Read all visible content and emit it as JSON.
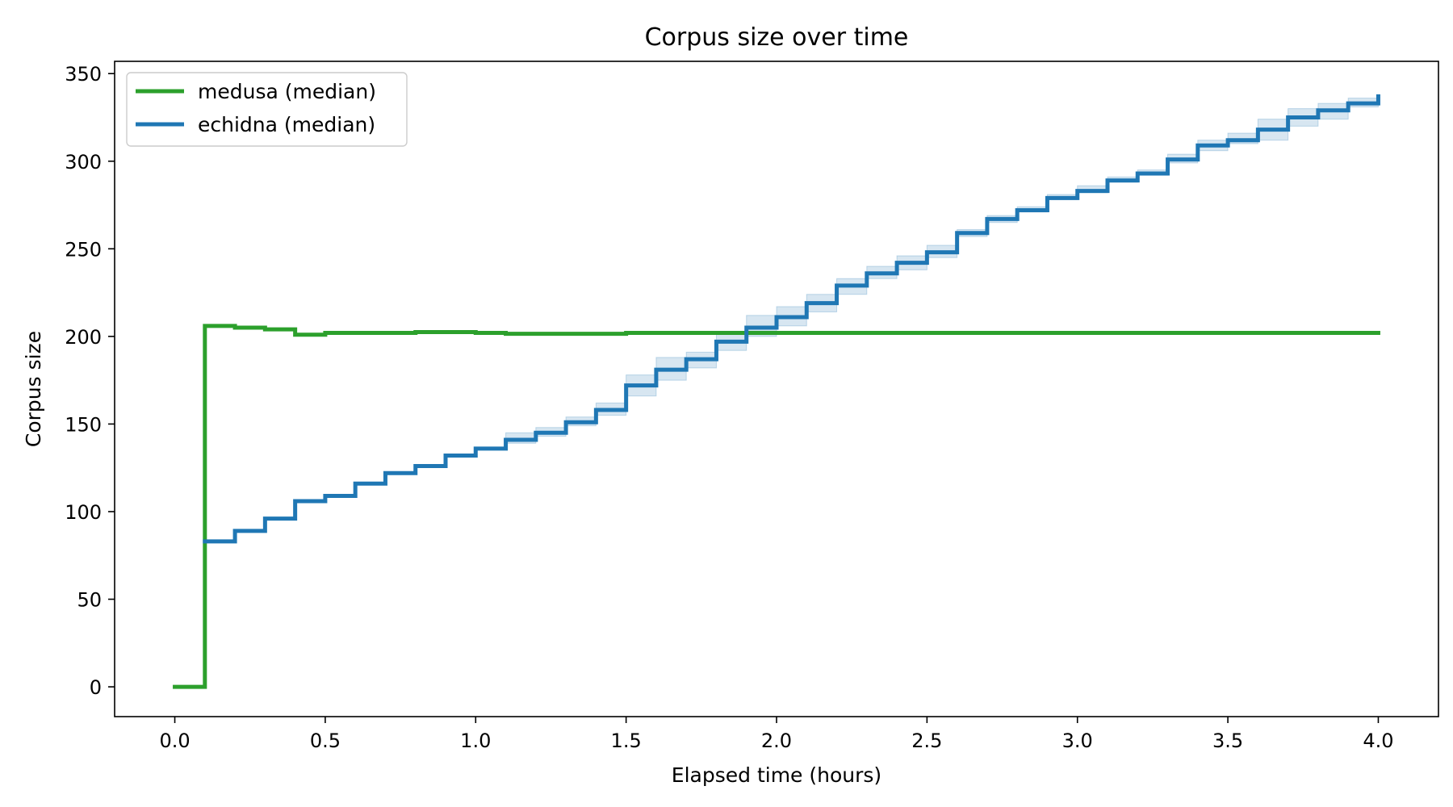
{
  "chart_data": {
    "type": "line",
    "title": "Corpus size over time",
    "xlabel": "Elapsed time (hours)",
    "ylabel": "Corpus size",
    "xlim": [
      -0.2,
      4.2
    ],
    "ylim": [
      -17,
      357
    ],
    "xticks": [
      "0.0",
      "0.5",
      "1.0",
      "1.5",
      "2.0",
      "2.5",
      "3.0",
      "3.5",
      "4.0"
    ],
    "yticks": [
      "0",
      "50",
      "100",
      "150",
      "200",
      "250",
      "300",
      "350"
    ],
    "grid": false,
    "legend_position": "top-left",
    "step": "post",
    "series": [
      {
        "name": "medusa (median)",
        "color": "#2ca02c",
        "x": [
          0.0,
          0.1,
          0.2,
          0.3,
          0.4,
          0.5,
          0.6,
          0.7,
          0.8,
          0.9,
          1.0,
          1.1,
          1.2,
          1.3,
          1.4,
          1.5,
          1.6,
          1.7,
          1.8,
          1.9,
          2.0,
          2.1,
          2.2,
          2.3,
          2.4,
          2.5,
          2.6,
          2.7,
          2.8,
          2.9,
          3.0,
          3.1,
          3.2,
          3.3,
          3.4,
          3.5,
          3.6,
          3.7,
          3.8,
          3.9,
          4.0
        ],
        "y": [
          0,
          206,
          205,
          204,
          201,
          202,
          202,
          202,
          202.5,
          202.5,
          202,
          201.5,
          201.5,
          201.5,
          201.5,
          202,
          202,
          202,
          202,
          202,
          202,
          202,
          202,
          202,
          202,
          202,
          202,
          202,
          202,
          202,
          202,
          202,
          202,
          202,
          202,
          202,
          202,
          202,
          202,
          202,
          202
        ]
      },
      {
        "name": "echidna (median)",
        "color": "#1f77b4",
        "x": [
          0.1,
          0.2,
          0.3,
          0.4,
          0.5,
          0.6,
          0.7,
          0.8,
          0.9,
          1.0,
          1.1,
          1.2,
          1.3,
          1.4,
          1.5,
          1.6,
          1.7,
          1.8,
          1.9,
          2.0,
          2.1,
          2.2,
          2.3,
          2.4,
          2.5,
          2.6,
          2.7,
          2.8,
          2.9,
          3.0,
          3.1,
          3.2,
          3.3,
          3.4,
          3.5,
          3.6,
          3.7,
          3.8,
          3.9,
          4.0
        ],
        "y": [
          83,
          89,
          96,
          106,
          109,
          116,
          122,
          126,
          132,
          136,
          141,
          145,
          151,
          158,
          172,
          181,
          187,
          197,
          205,
          211,
          219,
          229,
          236,
          242,
          248,
          259,
          267,
          272,
          279,
          283,
          289,
          293,
          301,
          309,
          312,
          318,
          325,
          329,
          333,
          337
        ],
        "band_low": [
          83,
          89,
          96,
          106,
          109,
          116,
          122,
          126,
          132,
          136,
          139,
          143,
          149,
          155,
          166,
          175,
          182,
          192,
          200,
          206,
          214,
          224,
          233,
          238,
          245,
          257,
          265,
          271,
          278,
          282,
          288,
          292,
          299,
          306,
          310,
          312,
          320,
          324,
          331,
          334
        ],
        "band_high": [
          83,
          89,
          96,
          106,
          109,
          116,
          122,
          126,
          132,
          136,
          145,
          148,
          154,
          162,
          178,
          188,
          191,
          202,
          212,
          217,
          224,
          233,
          240,
          246,
          252,
          261,
          269,
          274,
          281,
          286,
          291,
          295,
          304,
          312,
          316,
          324,
          330,
          333,
          336,
          340
        ]
      }
    ]
  }
}
